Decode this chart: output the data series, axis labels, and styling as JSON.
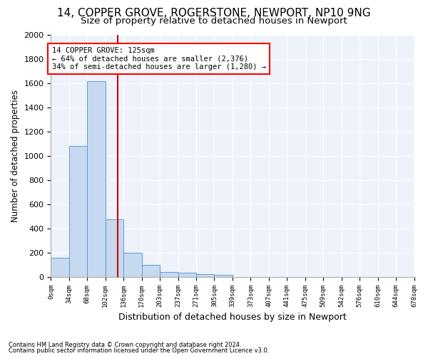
{
  "title1": "14, COPPER GROVE, ROGERSTONE, NEWPORT, NP10 9NG",
  "title2": "Size of property relative to detached houses in Newport",
  "xlabel": "Distribution of detached houses by size in Newport",
  "ylabel": "Number of detached properties",
  "bar_values": [
    160,
    1080,
    1620,
    480,
    200,
    100,
    45,
    35,
    22,
    20,
    0,
    0,
    0,
    0,
    0,
    0,
    0,
    0,
    0,
    0
  ],
  "bin_labels": [
    "0sqm",
    "34sqm",
    "68sqm",
    "102sqm",
    "136sqm",
    "170sqm",
    "203sqm",
    "237sqm",
    "271sqm",
    "305sqm",
    "339sqm",
    "373sqm",
    "407sqm",
    "441sqm",
    "475sqm",
    "509sqm",
    "542sqm",
    "576sqm",
    "610sqm",
    "644sqm",
    "678sqm"
  ],
  "bar_color": "#c6d9f0",
  "bar_edge_color": "#5b9bd5",
  "vline_x": 3.68,
  "vline_color": "#cc0000",
  "annotation_box_text": "14 COPPER GROVE: 125sqm\n← 64% of detached houses are smaller (2,376)\n34% of semi-detached houses are larger (1,280) →",
  "ylim": [
    0,
    2000
  ],
  "yticks": [
    0,
    200,
    400,
    600,
    800,
    1000,
    1200,
    1400,
    1600,
    1800,
    2000
  ],
  "footnote1": "Contains HM Land Registry data © Crown copyright and database right 2024.",
  "footnote2": "Contains public sector information licensed under the Open Government Licence v3.0.",
  "bg_color": "#eef2fb",
  "title1_fontsize": 11,
  "title2_fontsize": 9.5
}
